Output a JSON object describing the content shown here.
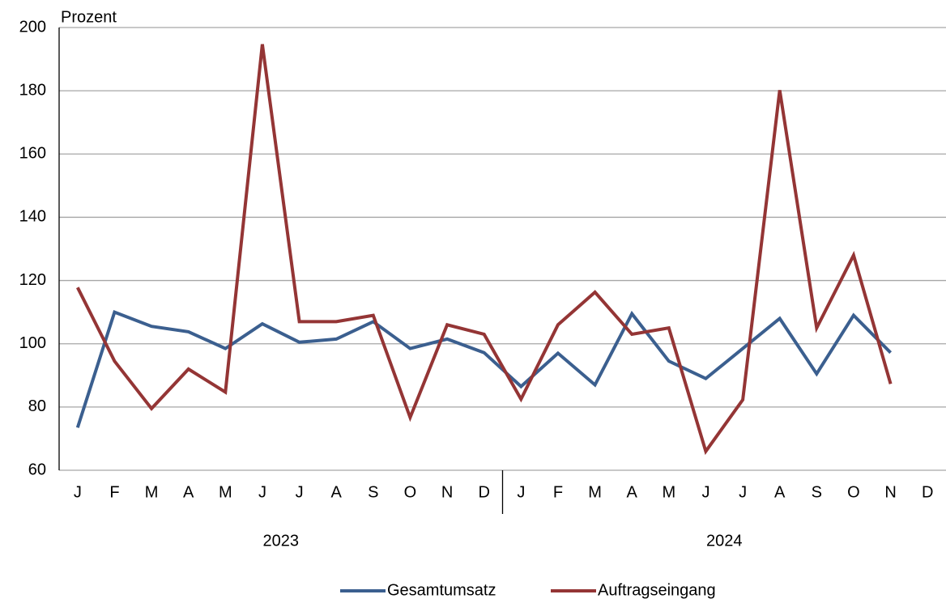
{
  "chart_data": {
    "type": "line",
    "y_label": "Prozent",
    "categories": [
      "J",
      "F",
      "M",
      "A",
      "M",
      "J",
      "J",
      "A",
      "S",
      "O",
      "N",
      "D",
      "J",
      "F",
      "M",
      "A",
      "M",
      "J",
      "J",
      "A",
      "S",
      "O",
      "N",
      "D"
    ],
    "groups": [
      "2023",
      "2024"
    ],
    "series": [
      {
        "name": "Gesamtumsatz",
        "color": "#3b5f8f",
        "values": [
          73.5,
          110,
          105.5,
          103.8,
          98.5,
          106.3,
          100.5,
          101.5,
          107,
          98.5,
          101.5,
          97.2,
          86.5,
          97,
          87,
          109.5,
          94.5,
          89,
          98.5,
          108,
          90.5,
          109,
          97.2,
          null
        ]
      },
      {
        "name": "Auftragseingang",
        "color": "#943535",
        "values": [
          117.8,
          94.5,
          79.5,
          92,
          84.7,
          194.7,
          107,
          107,
          109,
          76.7,
          106,
          103,
          82.5,
          106,
          116.3,
          103,
          105,
          66,
          82.3,
          180.2,
          105,
          128,
          87.3,
          null
        ]
      }
    ],
    "ylim": [
      60,
      200
    ],
    "yticks": [
      60,
      80,
      100,
      120,
      140,
      160,
      180,
      200
    ],
    "grid": true,
    "legend": "bottom"
  }
}
